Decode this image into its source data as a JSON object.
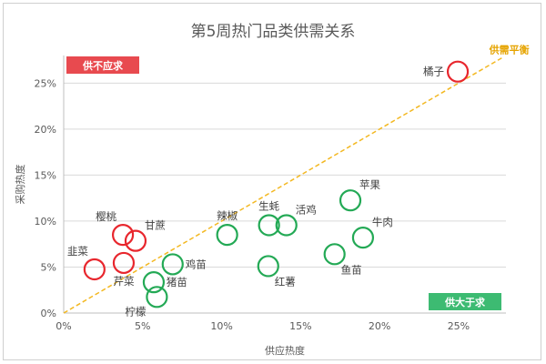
{
  "chart_data": {
    "type": "scatter",
    "title": "第5周热门品类供需关系",
    "xlabel": "供应热度",
    "ylabel": "采购热度",
    "xlim": [
      0,
      0.28
    ],
    "ylim": [
      0,
      0.28
    ],
    "x_ticks": [
      0,
      0.05,
      0.1,
      0.15,
      0.2,
      0.25
    ],
    "x_tick_labels": [
      "0%",
      "5%",
      "10%",
      "15%",
      "20%",
      "25%"
    ],
    "y_ticks": [
      0,
      0.05,
      0.1,
      0.15,
      0.2,
      0.25
    ],
    "y_tick_labels": [
      "0%",
      "5%",
      "10%",
      "15%",
      "20%",
      "25%"
    ],
    "grid": "horizontal",
    "balance_line_label": "供需平衡",
    "badges": {
      "demand_exceeds": {
        "text": "供不应求",
        "color": "#e84a4f"
      },
      "supply_exceeds": {
        "text": "供大于求",
        "color": "#3dbb72"
      }
    },
    "colors": {
      "demand": "#e8262d",
      "supply": "#23a955",
      "balance_line": "#f3b821",
      "gridline": "#d9d9d9",
      "axis": "#bfbfbf"
    },
    "points": [
      {
        "name": "橘子",
        "x": 0.2495,
        "y": 0.2625,
        "group": "demand",
        "label_pos": "left"
      },
      {
        "name": "樱桃",
        "x": 0.0375,
        "y": 0.085,
        "group": "demand",
        "label_pos": "top-left"
      },
      {
        "name": "甘蔗",
        "x": 0.0455,
        "y": 0.0785,
        "group": "demand",
        "label_pos": "top-right"
      },
      {
        "name": "韭菜",
        "x": 0.0195,
        "y": 0.0475,
        "group": "demand",
        "label_pos": "top-left"
      },
      {
        "name": "芹菜",
        "x": 0.038,
        "y": 0.0545,
        "group": "demand",
        "label_pos": "bottom"
      },
      {
        "name": "辣椒",
        "x": 0.1035,
        "y": 0.085,
        "group": "supply",
        "label_pos": "top"
      },
      {
        "name": "生蚝",
        "x": 0.13,
        "y": 0.0955,
        "group": "supply",
        "label_pos": "top"
      },
      {
        "name": "活鸡",
        "x": 0.141,
        "y": 0.0955,
        "group": "supply",
        "label_pos": "top-right"
      },
      {
        "name": "苹果",
        "x": 0.1815,
        "y": 0.1225,
        "group": "supply",
        "label_pos": "top-right"
      },
      {
        "name": "牛肉",
        "x": 0.1895,
        "y": 0.082,
        "group": "supply",
        "label_pos": "top-right"
      },
      {
        "name": "鱼苗",
        "x": 0.1715,
        "y": 0.064,
        "group": "supply",
        "label_pos": "bottom-right"
      },
      {
        "name": "红薯",
        "x": 0.1295,
        "y": 0.051,
        "group": "supply",
        "label_pos": "bottom-right"
      },
      {
        "name": "鸡苗",
        "x": 0.069,
        "y": 0.053,
        "group": "supply",
        "label_pos": "right"
      },
      {
        "name": "猪苗",
        "x": 0.057,
        "y": 0.0335,
        "group": "supply",
        "label_pos": "right"
      },
      {
        "name": "柠檬",
        "x": 0.059,
        "y": 0.0175,
        "group": "supply",
        "label_pos": "bottom-left"
      }
    ]
  }
}
